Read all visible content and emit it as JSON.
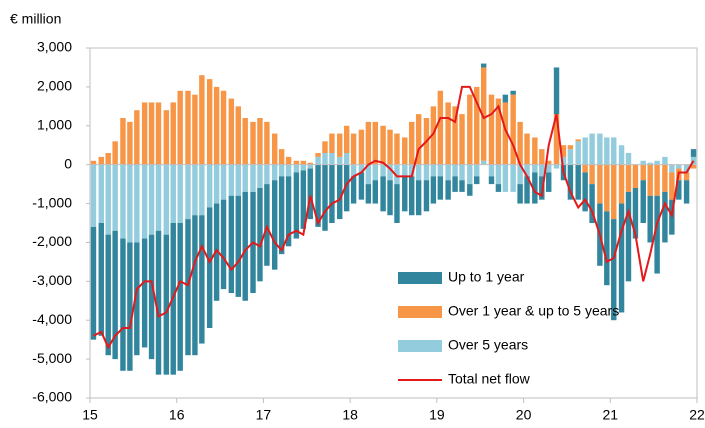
{
  "chart_data": {
    "type": "bar",
    "y_unit": "€ million",
    "xlim": [
      15,
      22
    ],
    "xticks": [
      15,
      16,
      17,
      18,
      19,
      20,
      21,
      22
    ],
    "ylim": [
      -6000,
      3000
    ],
    "yticks": [
      {
        "value": -6000,
        "label": "-6,000"
      },
      {
        "value": -5000,
        "label": "-5,000"
      },
      {
        "value": -4000,
        "label": "-4,000"
      },
      {
        "value": -3000,
        "label": "-3,000"
      },
      {
        "value": -2000,
        "label": "-2,000"
      },
      {
        "value": -1000,
        "label": "-1,000"
      },
      0,
      {
        "value": 1000,
        "label": "1,000"
      },
      {
        "value": 2000,
        "label": "2,000"
      },
      {
        "value": 3000,
        "label": "3,000"
      }
    ],
    "legend": "lower right",
    "x": [
      15.04,
      15.13,
      15.21,
      15.29,
      15.38,
      15.46,
      15.54,
      15.63,
      15.71,
      15.79,
      15.88,
      15.96,
      16.04,
      16.13,
      16.21,
      16.29,
      16.38,
      16.46,
      16.54,
      16.63,
      16.71,
      16.79,
      16.88,
      16.96,
      17.04,
      17.13,
      17.21,
      17.29,
      17.38,
      17.46,
      17.54,
      17.63,
      17.71,
      17.79,
      17.88,
      17.96,
      18.04,
      18.13,
      18.21,
      18.29,
      18.38,
      18.46,
      18.54,
      18.63,
      18.71,
      18.79,
      18.88,
      18.96,
      19.04,
      19.13,
      19.21,
      19.29,
      19.38,
      19.46,
      19.54,
      19.63,
      19.71,
      19.79,
      19.88,
      19.96,
      20.04,
      20.13,
      20.21,
      20.29,
      20.38,
      20.46,
      20.54,
      20.63,
      20.71,
      20.79,
      20.88,
      20.96,
      21.04,
      21.13,
      21.21,
      21.29,
      21.38,
      21.46,
      21.54,
      21.63,
      21.71,
      21.79,
      21.88,
      21.96
    ],
    "series": [
      {
        "name": "Up to 1 year",
        "color": "#31859c",
        "kind": "bar",
        "values": [
          -2900,
          -2900,
          -3100,
          -3300,
          -3400,
          -3300,
          -2900,
          -2800,
          -3200,
          -3700,
          -3600,
          -3900,
          -3800,
          -3500,
          -3600,
          -3300,
          -3100,
          -2500,
          -2300,
          -2500,
          -2600,
          -2800,
          -2600,
          -2400,
          -2100,
          -2300,
          -2000,
          -1800,
          -1700,
          -1500,
          -1300,
          -1600,
          -1700,
          -1500,
          -1400,
          -1200,
          -700,
          -700,
          -500,
          -600,
          -900,
          -900,
          -1000,
          -900,
          -1000,
          -900,
          -800,
          -700,
          -600,
          -500,
          -400,
          -300,
          -300,
          -200,
          100,
          -200,
          -200,
          200,
          100,
          -500,
          -700,
          -800,
          -600,
          -500,
          1200,
          -400,
          -900,
          -900,
          -1000,
          -1000,
          -1600,
          -1900,
          -2600,
          -2800,
          -2300,
          -1300,
          -1100,
          -1200,
          -2000,
          -1300,
          -900,
          -500,
          -600,
          200
        ]
      },
      {
        "name": "Over 1 year & up to 5 years",
        "color": "#f79646",
        "kind": "bar",
        "values": [
          100,
          200,
          300,
          600,
          1200,
          1100,
          1400,
          1600,
          1600,
          1600,
          1400,
          1600,
          1900,
          1900,
          1800,
          2300,
          2200,
          2000,
          1900,
          1700,
          1500,
          1200,
          1100,
          1200,
          1100,
          800,
          400,
          200,
          100,
          100,
          50,
          100,
          300,
          500,
          600,
          700,
          800,
          900,
          1100,
          1100,
          1000,
          900,
          800,
          700,
          1100,
          1300,
          1200,
          1500,
          1900,
          1600,
          1500,
          1300,
          1800,
          2000,
          2400,
          1800,
          1700,
          1600,
          1800,
          1100,
          800,
          700,
          400,
          100,
          1300,
          300,
          100,
          50,
          -200,
          -500,
          -1000,
          -1200,
          -1400,
          -1000,
          -700,
          -600,
          -400,
          -800,
          -800,
          -700,
          -700,
          -300,
          -200,
          -100
        ]
      },
      {
        "name": "Over 5 years",
        "color": "#93cddd",
        "kind": "bar",
        "values": [
          -1600,
          -1500,
          -1800,
          -1700,
          -1900,
          -2000,
          -2000,
          -1900,
          -1800,
          -1700,
          -1800,
          -1500,
          -1500,
          -1400,
          -1300,
          -1300,
          -1100,
          -1000,
          -900,
          -800,
          -800,
          -700,
          -700,
          -600,
          -500,
          -400,
          -300,
          -300,
          -200,
          -150,
          -100,
          200,
          300,
          300,
          200,
          300,
          -300,
          -200,
          -500,
          -400,
          -300,
          -400,
          -500,
          -300,
          -300,
          -400,
          -400,
          -300,
          -300,
          -400,
          -300,
          -400,
          -500,
          -300,
          100,
          -300,
          -500,
          -700,
          -700,
          -500,
          -300,
          -200,
          -300,
          -200,
          -100,
          200,
          400,
          600,
          700,
          800,
          800,
          700,
          700,
          500,
          300,
          0,
          100,
          50,
          100,
          200,
          -200,
          -100,
          -200,
          200
        ]
      },
      {
        "name": "Total net flow",
        "color": "#e31a1c",
        "kind": "line",
        "values": [
          -4400,
          -4300,
          -4700,
          -4400,
          -4200,
          -4200,
          -3200,
          -3000,
          -3000,
          -3900,
          -3800,
          -3400,
          -3000,
          -3100,
          -2500,
          -2100,
          -2500,
          -2200,
          -2400,
          -2700,
          -2500,
          -2200,
          -2000,
          -2100,
          -1600,
          -2000,
          -2200,
          -1800,
          -1700,
          -1800,
          -800,
          -1500,
          -1200,
          -1000,
          -900,
          -500,
          -300,
          -200,
          0,
          100,
          50,
          -100,
          -300,
          -300,
          -300,
          400,
          600,
          800,
          1200,
          1200,
          1100,
          2000,
          2000,
          1600,
          1200,
          1300,
          1500,
          900,
          500,
          0,
          -300,
          -700,
          -800,
          500,
          1300,
          -200,
          -700,
          -1100,
          -900,
          -1200,
          -1800,
          -2500,
          -2400,
          -1700,
          -1200,
          -1800,
          -3000,
          -2300,
          -1500,
          -1000,
          -1300,
          -200,
          -200,
          100
        ]
      }
    ]
  }
}
